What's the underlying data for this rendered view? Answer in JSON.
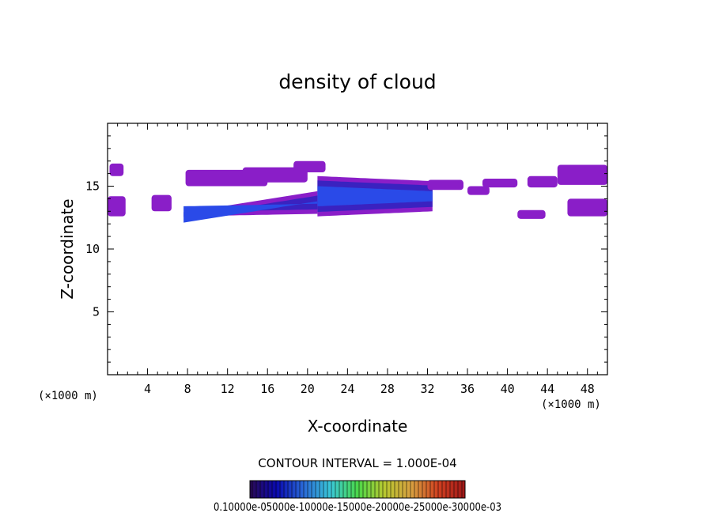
{
  "chart_data": {
    "type": "heatmap",
    "title": "density of cloud",
    "xlabel": "X-coordinate",
    "ylabel": "Z-coordinate",
    "x_unit_left": "(×1000 m)",
    "x_unit_right": "(×1000 m)",
    "xlim": [
      0,
      50
    ],
    "ylim": [
      0,
      20
    ],
    "x_ticks": [
      4,
      8,
      12,
      16,
      20,
      24,
      28,
      32,
      36,
      40,
      44,
      48
    ],
    "x_tick_labels": [
      "4",
      "8",
      "12",
      "16",
      "20",
      "24",
      "28",
      "32",
      "36",
      "40",
      "44",
      "48"
    ],
    "y_ticks": [
      5,
      10,
      15
    ],
    "y_tick_labels": [
      "5",
      "10",
      "15"
    ],
    "contour_interval_text": "CONTOUR INTERVAL = 1.000E-04",
    "colorbar_text": "0.10000e-05000e-10000e-15000e-20000e-25000e-30000e-03",
    "colormap_colors": [
      "#2a0a55",
      "#0a0ab0",
      "#2a6ad8",
      "#3ac8d8",
      "#4ad84a",
      "#b8c830",
      "#d8a040",
      "#d04020",
      "#a01818"
    ],
    "field_colors": {
      "outer": "#8a1ec8",
      "inner": "#3a22c0",
      "core": "#2a4ae8"
    },
    "cloud_regions": [
      {
        "kind": "main_band_left",
        "x": [
          7.6,
          21
        ],
        "z_bottom": [
          12.6,
          12.8
        ],
        "z_top": [
          12.9,
          14.6
        ],
        "intensity": 3
      },
      {
        "kind": "main_band_right",
        "x": [
          21,
          32.5
        ],
        "z_bottom": [
          12.6,
          13.0
        ],
        "z_top": [
          15.8,
          15.4
        ],
        "intensity": 3
      },
      {
        "kind": "patch",
        "x": [
          0,
          1.8
        ],
        "z": [
          12.6,
          14.2
        ],
        "intensity": 1
      },
      {
        "kind": "patch",
        "x": [
          0.2,
          1.6
        ],
        "z": [
          15.8,
          16.8
        ],
        "intensity": 1
      },
      {
        "kind": "patch",
        "x": [
          4.4,
          6.4
        ],
        "z": [
          13.0,
          14.3
        ],
        "intensity": 1
      },
      {
        "kind": "patch",
        "x": [
          7.8,
          16.0
        ],
        "z": [
          15.0,
          16.3
        ],
        "intensity": 1
      },
      {
        "kind": "patch",
        "x": [
          13.5,
          20.0
        ],
        "z": [
          15.3,
          16.5
        ],
        "intensity": 1
      },
      {
        "kind": "patch",
        "x": [
          18.6,
          21.8
        ],
        "z": [
          16.1,
          17.0
        ],
        "intensity": 1
      },
      {
        "kind": "patch",
        "x": [
          32.0,
          35.6
        ],
        "z": [
          14.7,
          15.5
        ],
        "intensity": 1
      },
      {
        "kind": "patch",
        "x": [
          36.0,
          38.2
        ],
        "z": [
          14.3,
          15.0
        ],
        "intensity": 1
      },
      {
        "kind": "patch",
        "x": [
          37.5,
          41.0
        ],
        "z": [
          14.9,
          15.6
        ],
        "intensity": 1
      },
      {
        "kind": "patch",
        "x": [
          41.0,
          43.8
        ],
        "z": [
          12.4,
          13.1
        ],
        "intensity": 1
      },
      {
        "kind": "patch",
        "x": [
          42.0,
          45.0
        ],
        "z": [
          14.9,
          15.8
        ],
        "intensity": 1
      },
      {
        "kind": "patch",
        "x": [
          45.0,
          50.0
        ],
        "z": [
          15.1,
          16.7
        ],
        "intensity": 1
      },
      {
        "kind": "patch",
        "x": [
          46.0,
          50.0
        ],
        "z": [
          12.6,
          14.0
        ],
        "intensity": 1
      }
    ]
  }
}
